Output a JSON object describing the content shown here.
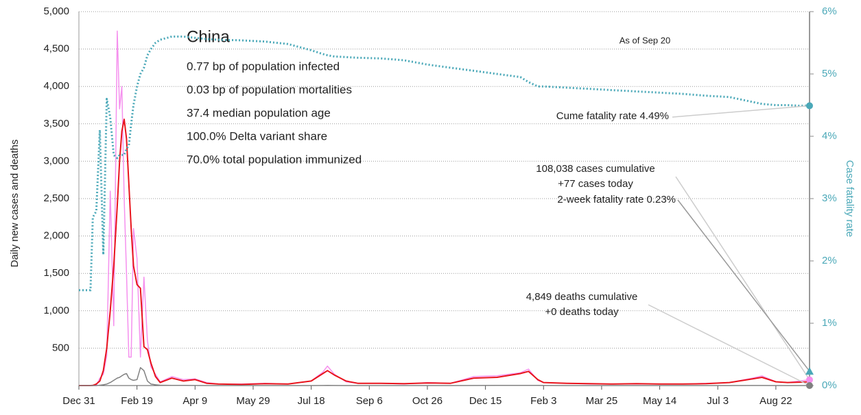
{
  "chart_data": {
    "type": "line",
    "ylabel": "Daily new cases and deaths",
    "y2label": "Case fatality rate",
    "xlim": [
      0,
      629
    ],
    "xticks": [
      {
        "value": 0,
        "label": "Dec 31"
      },
      {
        "value": 50,
        "label": "Feb 19"
      },
      {
        "value": 100,
        "label": "Apr 9"
      },
      {
        "value": 150,
        "label": "May 29"
      },
      {
        "value": 200,
        "label": "Jul 18"
      },
      {
        "value": 250,
        "label": "Sep 6"
      },
      {
        "value": 300,
        "label": "Oct 26"
      },
      {
        "value": 350,
        "label": "Dec 15"
      },
      {
        "value": 400,
        "label": "Feb 3"
      },
      {
        "value": 450,
        "label": "Mar 25"
      },
      {
        "value": 500,
        "label": "May 14"
      },
      {
        "value": 550,
        "label": "Jul 3"
      },
      {
        "value": 600,
        "label": "Aug 22"
      }
    ],
    "ylim": [
      0,
      5000
    ],
    "yticks": [
      {
        "value": 500,
        "label": "500"
      },
      {
        "value": 1000,
        "label": "1,000"
      },
      {
        "value": 1500,
        "label": "1,500"
      },
      {
        "value": 2000,
        "label": "2,000"
      },
      {
        "value": 2500,
        "label": "2,500"
      },
      {
        "value": 3000,
        "label": "3,000"
      },
      {
        "value": 3500,
        "label": "3,500"
      },
      {
        "value": 4000,
        "label": "4,000"
      },
      {
        "value": 4500,
        "label": "4,500"
      },
      {
        "value": 5000,
        "label": "5,000"
      }
    ],
    "y2lim": [
      0,
      6
    ],
    "y2ticks": [
      {
        "value": 0,
        "label": "0%"
      },
      {
        "value": 1,
        "label": "1%"
      },
      {
        "value": 2,
        "label": "2%"
      },
      {
        "value": 3,
        "label": "3%"
      },
      {
        "value": 4,
        "label": "4%"
      },
      {
        "value": 5,
        "label": "5%"
      },
      {
        "value": 6,
        "label": "6%"
      }
    ],
    "grid": true,
    "x": [
      0,
      5,
      10,
      12,
      15,
      18,
      21,
      24,
      27,
      30,
      33,
      35,
      37,
      39,
      41,
      43,
      45,
      47,
      50,
      53,
      56,
      59,
      62,
      66,
      70,
      80,
      90,
      100,
      110,
      120,
      140,
      160,
      180,
      200,
      210,
      214,
      220,
      230,
      240,
      260,
      280,
      300,
      320,
      340,
      360,
      380,
      387,
      395,
      400,
      420,
      440,
      460,
      480,
      500,
      520,
      540,
      560,
      580,
      588,
      600,
      610,
      620,
      629
    ],
    "series": [
      {
        "name": "Daily new cases",
        "color": "#f590ee",
        "values": [
          0,
          0,
          0,
          0,
          0,
          100,
          150,
          400,
          2600,
          800,
          4740,
          3700,
          4000,
          2500,
          1500,
          380,
          380,
          2100,
          1700,
          380,
          1450,
          600,
          250,
          150,
          50,
          120,
          80,
          90,
          40,
          20,
          20,
          30,
          20,
          60,
          180,
          260,
          150,
          50,
          30,
          30,
          20,
          40,
          30,
          120,
          130,
          170,
          220,
          70,
          40,
          30,
          20,
          20,
          20,
          20,
          20,
          30,
          40,
          100,
          130,
          50,
          40,
          60,
          77
        ]
      },
      {
        "name": "Smoothed cases",
        "color": "#e8141c",
        "values": [
          0,
          0,
          0,
          2,
          20,
          60,
          200,
          500,
          1000,
          1600,
          2400,
          3000,
          3400,
          3560,
          3300,
          2700,
          2100,
          1600,
          1350,
          1300,
          520,
          480,
          300,
          120,
          40,
          100,
          60,
          80,
          30,
          20,
          15,
          25,
          20,
          60,
          160,
          200,
          140,
          60,
          30,
          30,
          25,
          35,
          30,
          100,
          110,
          160,
          190,
          80,
          40,
          30,
          25,
          20,
          25,
          20,
          20,
          25,
          40,
          90,
          110,
          50,
          40,
          45,
          50
        ]
      },
      {
        "name": "Daily deaths",
        "color": "#808080",
        "values": [
          0,
          0,
          0,
          0,
          0,
          5,
          10,
          20,
          40,
          70,
          100,
          110,
          130,
          150,
          160,
          100,
          80,
          70,
          80,
          240,
          200,
          60,
          20,
          10,
          5,
          3,
          2,
          1,
          0,
          0,
          0,
          0,
          0,
          0,
          1,
          2,
          1,
          0,
          0,
          0,
          0,
          0,
          0,
          1,
          2,
          3,
          3,
          2,
          1,
          0,
          0,
          0,
          0,
          0,
          0,
          0,
          0,
          1,
          1,
          0,
          0,
          0,
          0
        ]
      },
      {
        "name": "Case fatality rate",
        "color": "#4aa8b8",
        "axis": "y2",
        "dotted": true,
        "values": [
          1.53,
          1.53,
          1.53,
          2.7,
          2.8,
          4.1,
          2.1,
          4.6,
          4.3,
          3.7,
          3.65,
          3.7,
          3.7,
          3.7,
          3.8,
          3.85,
          4.2,
          4.5,
          4.8,
          5.0,
          5.1,
          5.3,
          5.4,
          5.5,
          5.55,
          5.6,
          5.6,
          5.58,
          5.56,
          5.55,
          5.54,
          5.52,
          5.48,
          5.38,
          5.32,
          5.3,
          5.28,
          5.27,
          5.26,
          5.25,
          5.22,
          5.15,
          5.1,
          5.05,
          5.0,
          4.95,
          4.87,
          4.8,
          4.8,
          4.78,
          4.76,
          4.74,
          4.72,
          4.7,
          4.68,
          4.65,
          4.63,
          4.55,
          4.52,
          4.5,
          4.5,
          4.49,
          4.49
        ]
      }
    ],
    "endpoints": [
      {
        "lines": [
          "Cume fatality rate 4.49%"
        ],
        "value": 4.49,
        "axis": "y2",
        "color": "#4aa8b8",
        "shape": "circle"
      },
      {
        "lines": [
          "108,038 cases cumulative",
          "+77 cases today"
        ],
        "value": 77,
        "color": "#f590ee",
        "shape": "circle"
      },
      {
        "lines": [
          "2-week fatality rate 0.23%"
        ],
        "value": 0.23,
        "axis": "y2",
        "color": "#4aa8b8",
        "shape": "triangle"
      },
      {
        "lines": [
          "4,849 deaths cumulative",
          "+0 deaths today"
        ],
        "value": 0,
        "color": "#808080",
        "shape": "circle"
      }
    ],
    "note": "As of Sep 20",
    "info": {
      "title": "China",
      "lines": [
        "0.77 bp of population infected",
        "0.03 bp of population mortalities",
        "37.4 median population age",
        "100.0% Delta variant share",
        "70.0% total population immunized"
      ]
    }
  }
}
